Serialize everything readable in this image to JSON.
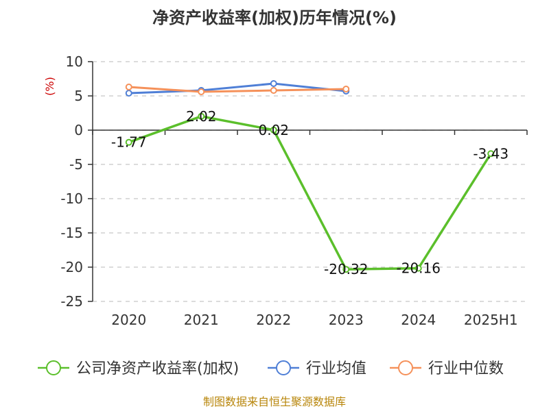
{
  "chart_data": {
    "type": "line",
    "title": "净资产收益率(加权)历年情况(%)",
    "unit_label": "(%)",
    "categories": [
      "2020",
      "2021",
      "2022",
      "2023",
      "2024",
      "2025H1"
    ],
    "y_ticks": [
      "10",
      "5",
      "0",
      "-5",
      "-10",
      "-15",
      "-20",
      "-25"
    ],
    "ylim": [
      -25,
      10
    ],
    "grid": true,
    "legend_position": "bottom",
    "series": [
      {
        "name": "公司净资产收益率(加权)",
        "color": "#5bbf2b",
        "values": [
          -1.77,
          2.02,
          0.02,
          -20.32,
          -20.16,
          -3.43
        ],
        "labels": [
          "-1.77",
          "2.02",
          "0.02",
          "-20.32",
          "-20.16",
          "-3.43"
        ]
      },
      {
        "name": "行业均值",
        "color": "#4f7fd6",
        "values": [
          5.4,
          5.8,
          6.8,
          5.7,
          null,
          null
        ]
      },
      {
        "name": "行业中位数",
        "color": "#f5915a",
        "values": [
          6.3,
          5.6,
          5.8,
          6.0,
          null,
          null
        ]
      }
    ]
  },
  "source": "制图数据来自恒生聚源数据库"
}
